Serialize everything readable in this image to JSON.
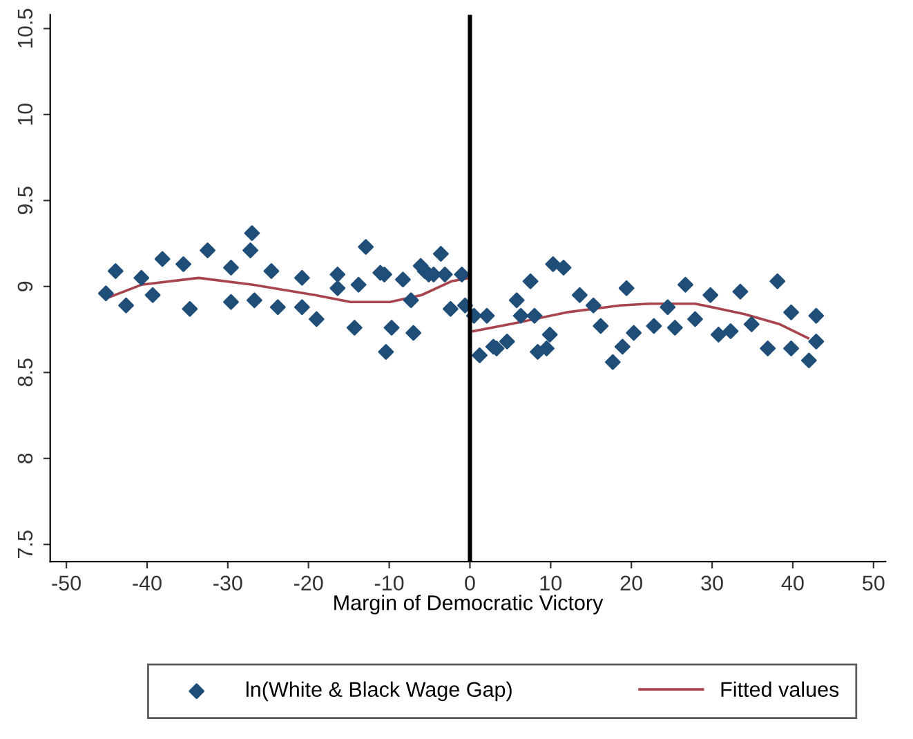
{
  "chart_data": {
    "type": "scatter",
    "xlabel": "Margin of Democratic Victory",
    "xlim": [
      -52,
      51.5
    ],
    "ylim": [
      7.4,
      10.58
    ],
    "xticks": [
      -50,
      -40,
      -30,
      -20,
      -10,
      0,
      10,
      20,
      30,
      40,
      50
    ],
    "yticks": [
      7.5,
      8,
      8.5,
      9,
      9.5,
      10,
      10.5
    ],
    "grid": false,
    "legend": "bottom",
    "ref_lines": [
      {
        "axis": "x",
        "value": 0,
        "color": "#000000"
      }
    ],
    "series": [
      {
        "name": "ln(White & Black Wage Gap)",
        "marker": "diamond",
        "color": "#1f4e79",
        "x": [
          -45.1,
          -43.9,
          -42.6,
          -40.7,
          -39.3,
          -38.1,
          -35.5,
          -34.7,
          -32.5,
          -29.6,
          -29.6,
          -27.2,
          -27.0,
          -26.7,
          -24.6,
          -23.8,
          -20.8,
          -20.8,
          -19.0,
          -16.4,
          -16.4,
          -14.3,
          -13.8,
          -12.9,
          -11.1,
          -10.6,
          -10.4,
          -9.7,
          -8.3,
          -7.3,
          -7.0,
          -6.1,
          -5.6,
          -5.1,
          -4.5,
          -3.6,
          -3.1,
          -2.4,
          -1.0,
          -0.6,
          0.5,
          1.2,
          2.1,
          2.9,
          3.3,
          4.6,
          5.8,
          6.3,
          7.5,
          8.0,
          8.4,
          9.5,
          9.9,
          10.3,
          11.6,
          13.6,
          15.3,
          16.2,
          17.7,
          18.9,
          19.4,
          20.3,
          22.8,
          24.5,
          25.4,
          26.7,
          27.9,
          29.8,
          30.8,
          32.3,
          33.5,
          34.9,
          36.9,
          38.1,
          39.8,
          39.8,
          42.0,
          42.9,
          42.9
        ],
        "values": [
          8.96,
          9.09,
          8.89,
          9.05,
          8.95,
          9.16,
          9.13,
          8.87,
          9.21,
          9.11,
          8.91,
          9.21,
          9.31,
          8.92,
          9.09,
          8.88,
          9.05,
          8.88,
          8.81,
          9.07,
          8.99,
          8.76,
          9.01,
          9.23,
          9.08,
          9.07,
          8.62,
          8.76,
          9.04,
          8.92,
          8.73,
          9.12,
          9.09,
          9.07,
          9.07,
          9.19,
          9.07,
          8.87,
          9.07,
          8.89,
          8.83,
          8.6,
          8.83,
          8.65,
          8.64,
          8.68,
          8.92,
          8.83,
          9.03,
          8.83,
          8.62,
          8.64,
          8.72,
          9.13,
          9.11,
          8.95,
          8.89,
          8.77,
          8.56,
          8.65,
          8.99,
          8.73,
          8.77,
          8.88,
          8.76,
          9.01,
          8.81,
          8.95,
          8.72,
          8.74,
          8.97,
          8.78,
          8.64,
          9.03,
          8.85,
          8.64,
          8.57,
          8.83,
          8.68
        ]
      },
      {
        "name": "Fitted values",
        "type": "line",
        "marker": "none",
        "color": "#a8444e",
        "line_style": "solid",
        "x": [
          -45.1,
          -40.7,
          -33.6,
          -26.9,
          -19.2,
          -14.8,
          -9.9,
          -6.0,
          -2.3,
          0
        ],
        "values": [
          8.93,
          9.01,
          9.05,
          9.01,
          8.95,
          8.91,
          8.91,
          8.95,
          9.03,
          9.05
        ]
      },
      {
        "type": "line",
        "marker": "none",
        "color": "#a8444e",
        "line_style": "solid",
        "x": [
          0.4,
          4.9,
          12.0,
          18.6,
          22.2,
          27.9,
          34.0,
          38.4,
          41.9
        ],
        "values": [
          8.74,
          8.78,
          8.85,
          8.89,
          8.9,
          8.9,
          8.84,
          8.78,
          8.7
        ]
      }
    ]
  }
}
